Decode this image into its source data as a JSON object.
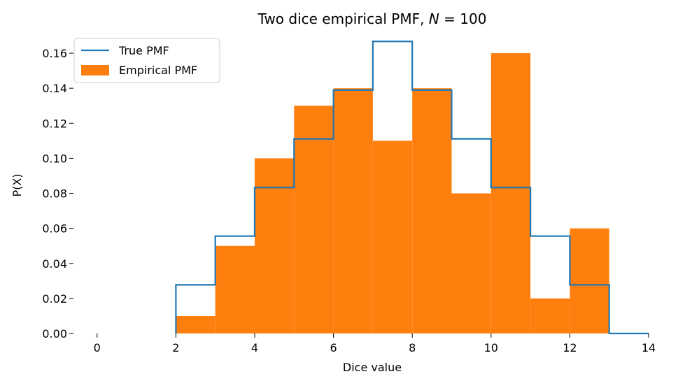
{
  "chart_data": {
    "type": "bar",
    "title": "Two dice empirical PMF, ",
    "title_math_var": "N",
    "title_math_rest": " = 100",
    "xlabel": "Dice value",
    "ylabel": "P(X)",
    "xlim": [
      -0.6,
      14
    ],
    "ylim": [
      0,
      0.172
    ],
    "xticks": [
      0,
      2,
      4,
      6,
      8,
      10,
      12,
      14
    ],
    "xtick_labels": [
      "0",
      "2",
      "4",
      "6",
      "8",
      "10",
      "12",
      "14"
    ],
    "yticks": [
      0,
      0.02,
      0.04,
      0.06,
      0.08,
      0.1,
      0.12,
      0.14,
      0.16
    ],
    "ytick_labels": [
      "0.00",
      "0.02",
      "0.04",
      "0.06",
      "0.08",
      "0.10",
      "0.12",
      "0.14",
      "0.16"
    ],
    "grid": false,
    "legend_position": "top-left",
    "legend": [
      {
        "label": "True PMF",
        "kind": "line",
        "color": "#1f77b4"
      },
      {
        "label": "Empirical PMF",
        "kind": "bar",
        "color": "#ff7f0e"
      }
    ],
    "series": [
      {
        "name": "Empirical PMF",
        "type": "bar",
        "color": "#ff7f0e",
        "x": [
          2,
          3,
          4,
          5,
          6,
          7,
          8,
          9,
          10,
          11,
          12
        ],
        "values": [
          0.01,
          0.05,
          0.1,
          0.13,
          0.14,
          0.11,
          0.14,
          0.08,
          0.16,
          0.02,
          0.06
        ]
      },
      {
        "name": "True PMF",
        "type": "step",
        "color": "#1f77b4",
        "x": [
          2,
          3,
          4,
          5,
          6,
          7,
          8,
          9,
          10,
          11,
          12,
          13,
          14
        ],
        "values": [
          0.0278,
          0.0556,
          0.0833,
          0.1111,
          0.1389,
          0.1667,
          0.1389,
          0.1111,
          0.0833,
          0.0556,
          0.0278,
          0.0,
          0.0
        ]
      }
    ]
  }
}
